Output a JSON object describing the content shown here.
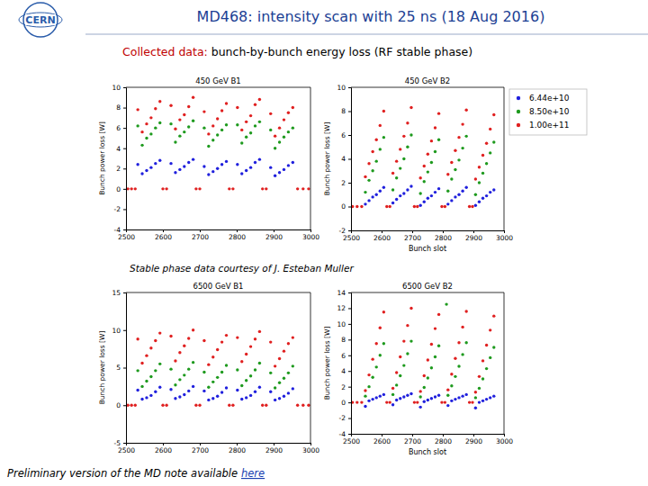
{
  "header": {
    "logo": "CERN",
    "title": "MD468: intensity scan with 25 ns (18 Aug 2016)"
  },
  "subtitle": {
    "lead": "Collected data:",
    "text": "bunch-by-bunch energy loss (RF stable phase)"
  },
  "credit": "Stable phase data courtesy of J. Esteban Muller",
  "footer": {
    "text": "Preliminary version of the MD note available",
    "link": "here"
  },
  "chart_data": [
    {
      "type": "scatter",
      "title": "450 GeV B1",
      "y_label": "Bunch power loss [W]",
      "xlim": [
        2500,
        3000
      ],
      "ylim": [
        -4,
        10
      ],
      "xticks": [
        2500,
        2600,
        2700,
        2800,
        2900,
        3000
      ],
      "yticks": [
        -4,
        -2,
        0,
        2,
        4,
        6,
        8,
        10
      ],
      "grid": false,
      "series": [
        {
          "color": "#2020dd",
          "marker": "circle",
          "x": [
            2532,
            2544,
            2556,
            2568,
            2580,
            2592,
            2622,
            2634,
            2646,
            2658,
            2670,
            2682,
            2712,
            2724,
            2736,
            2748,
            2760,
            2772,
            2802,
            2814,
            2826,
            2838,
            2850,
            2862,
            2892,
            2904,
            2916,
            2928,
            2940,
            2952
          ],
          "values": [
            2.4,
            1.5,
            1.8,
            2.1,
            2.5,
            2.8,
            2.5,
            1.6,
            1.9,
            2.2,
            2.6,
            2.9,
            2.2,
            1.4,
            1.7,
            2.0,
            2.4,
            2.7,
            2.4,
            1.5,
            1.8,
            2.1,
            2.6,
            2.9,
            2.1,
            1.3,
            1.6,
            1.9,
            2.3,
            2.6
          ]
        },
        {
          "color": "#1e9a1e",
          "marker": "circle",
          "x": [
            2532,
            2544,
            2556,
            2568,
            2580,
            2592,
            2622,
            2634,
            2646,
            2658,
            2670,
            2682,
            2712,
            2724,
            2736,
            2748,
            2760,
            2772,
            2802,
            2814,
            2826,
            2838,
            2850,
            2862,
            2892,
            2904,
            2916,
            2928,
            2940,
            2952
          ],
          "values": [
            6.2,
            4.3,
            5.0,
            5.4,
            6.0,
            6.5,
            6.4,
            4.6,
            5.2,
            5.6,
            6.1,
            6.7,
            6.0,
            4.2,
            4.8,
            5.3,
            5.8,
            6.3,
            6.3,
            4.5,
            5.1,
            5.5,
            6.2,
            6.6,
            5.8,
            4.0,
            4.6,
            5.1,
            5.6,
            6.0
          ]
        },
        {
          "color": "#e02020",
          "marker": "circle",
          "x": [
            2505,
            2515,
            2525,
            2532,
            2544,
            2556,
            2568,
            2580,
            2592,
            2600,
            2610,
            2622,
            2634,
            2646,
            2658,
            2670,
            2682,
            2690,
            2700,
            2712,
            2724,
            2736,
            2748,
            2760,
            2772,
            2780,
            2790,
            2802,
            2814,
            2826,
            2838,
            2850,
            2862,
            2870,
            2880,
            2892,
            2904,
            2916,
            2928,
            2940,
            2952,
            2965,
            2980,
            2995
          ],
          "values": [
            0,
            0,
            0,
            7.8,
            5.6,
            6.4,
            7.0,
            7.9,
            8.6,
            0,
            0,
            8.2,
            5.9,
            6.8,
            7.3,
            8.1,
            9.0,
            0,
            0,
            7.6,
            5.4,
            6.2,
            6.9,
            7.7,
            8.4,
            0,
            0,
            8.0,
            5.8,
            6.6,
            7.2,
            8.3,
            8.8,
            0,
            0,
            7.4,
            5.2,
            6.0,
            6.8,
            7.5,
            8.0,
            0,
            0,
            0
          ]
        }
      ]
    },
    {
      "type": "scatter",
      "title": "450 GeV B2",
      "x_label": "Bunch slot",
      "y_label": "Bunch power loss [W]",
      "xlim": [
        2500,
        3000
      ],
      "ylim": [
        -2,
        10
      ],
      "xticks": [
        2500,
        2600,
        2700,
        2800,
        2900,
        3000
      ],
      "yticks": [
        -2,
        0,
        2,
        4,
        6,
        8,
        10
      ],
      "grid": false,
      "legend": "right",
      "series": [
        {
          "name": "6.44e+10",
          "color": "#2020dd",
          "marker": "circle",
          "x": [
            2547,
            2559,
            2571,
            2583,
            2595,
            2607,
            2637,
            2649,
            2661,
            2673,
            2685,
            2697,
            2727,
            2739,
            2751,
            2763,
            2775,
            2787,
            2817,
            2829,
            2841,
            2853,
            2865,
            2877,
            2907,
            2919,
            2931,
            2943,
            2955,
            2967
          ],
          "values": [
            0.2,
            0.5,
            0.8,
            1.0,
            1.3,
            1.6,
            0.3,
            0.6,
            0.9,
            1.1,
            1.4,
            1.7,
            0.1,
            0.4,
            0.7,
            0.9,
            1.2,
            1.5,
            0.2,
            0.5,
            0.8,
            1.0,
            1.3,
            1.6,
            0.1,
            0.4,
            0.7,
            0.9,
            1.2,
            1.4
          ]
        },
        {
          "name": "8.50e+10",
          "color": "#1e9a1e",
          "marker": "circle",
          "x": [
            2547,
            2559,
            2571,
            2583,
            2595,
            2607,
            2637,
            2649,
            2661,
            2673,
            2685,
            2697,
            2727,
            2739,
            2751,
            2763,
            2775,
            2787,
            2817,
            2829,
            2841,
            2853,
            2865,
            2877,
            2907,
            2919,
            2931,
            2943,
            2955,
            2967
          ],
          "values": [
            1.2,
            2.2,
            3.0,
            3.8,
            4.8,
            5.8,
            1.4,
            2.4,
            3.2,
            4.0,
            5.0,
            6.0,
            1.1,
            2.1,
            2.9,
            3.7,
            4.6,
            5.6,
            1.3,
            2.3,
            3.1,
            3.9,
            4.9,
            5.9,
            1.0,
            2.0,
            2.8,
            3.6,
            4.5,
            5.4
          ]
        },
        {
          "name": "1.00e+11",
          "color": "#e02020",
          "marker": "circle",
          "x": [
            2505,
            2520,
            2535,
            2547,
            2559,
            2571,
            2583,
            2595,
            2607,
            2617,
            2627,
            2637,
            2649,
            2661,
            2673,
            2685,
            2697,
            2707,
            2717,
            2727,
            2739,
            2751,
            2763,
            2775,
            2787,
            2797,
            2807,
            2817,
            2829,
            2841,
            2853,
            2865,
            2877,
            2887,
            2897,
            2907,
            2919,
            2931,
            2943,
            2955,
            2967
          ],
          "values": [
            0,
            0,
            0,
            2.5,
            3.6,
            4.6,
            5.6,
            6.8,
            8.0,
            0,
            0,
            2.8,
            3.8,
            4.8,
            5.9,
            7.0,
            8.3,
            0,
            0,
            2.4,
            3.4,
            4.4,
            5.5,
            6.6,
            7.8,
            0,
            0,
            2.7,
            3.7,
            4.7,
            5.8,
            6.9,
            8.1,
            0,
            0,
            2.3,
            3.3,
            4.3,
            5.3,
            6.5,
            7.7
          ]
        }
      ]
    },
    {
      "type": "scatter",
      "title": "6500 GeV B1",
      "y_label": "Bunch power loss [W]",
      "xlim": [
        2500,
        3000
      ],
      "ylim": [
        -5,
        15
      ],
      "xticks": [
        2500,
        2600,
        2700,
        2800,
        2900,
        3000
      ],
      "yticks": [
        -5,
        0,
        5,
        10,
        15
      ],
      "grid": false,
      "series": [
        {
          "color": "#2020dd",
          "marker": "circle",
          "x": [
            2532,
            2544,
            2556,
            2568,
            2580,
            2592,
            2622,
            2634,
            2646,
            2658,
            2670,
            2682,
            2712,
            2724,
            2736,
            2748,
            2760,
            2772,
            2802,
            2814,
            2826,
            2838,
            2850,
            2862,
            2892,
            2904,
            2916,
            2928,
            2940,
            2952
          ],
          "values": [
            2.0,
            0.8,
            1.0,
            1.3,
            1.8,
            2.4,
            2.1,
            0.9,
            1.1,
            1.4,
            1.9,
            2.5,
            1.9,
            0.7,
            0.9,
            1.2,
            1.7,
            2.3,
            2.0,
            0.8,
            1.0,
            1.3,
            1.8,
            2.4,
            1.8,
            0.7,
            0.9,
            1.2,
            1.6,
            2.2
          ]
        },
        {
          "color": "#1e9a1e",
          "marker": "circle",
          "x": [
            2532,
            2544,
            2556,
            2568,
            2580,
            2592,
            2622,
            2634,
            2646,
            2658,
            2670,
            2682,
            2712,
            2724,
            2736,
            2748,
            2760,
            2772,
            2802,
            2814,
            2826,
            2838,
            2850,
            2862,
            2892,
            2904,
            2916,
            2928,
            2940,
            2952
          ],
          "values": [
            4.6,
            2.5,
            3.2,
            3.8,
            4.6,
            5.5,
            4.8,
            2.7,
            3.4,
            4.0,
            4.8,
            5.7,
            4.4,
            2.4,
            3.1,
            3.7,
            4.4,
            5.3,
            4.7,
            2.6,
            3.3,
            3.9,
            4.7,
            5.6,
            4.3,
            2.3,
            3.0,
            3.6,
            4.3,
            5.2
          ]
        },
        {
          "color": "#e02020",
          "marker": "circle",
          "x": [
            2505,
            2515,
            2525,
            2532,
            2544,
            2556,
            2568,
            2580,
            2592,
            2600,
            2610,
            2622,
            2634,
            2646,
            2658,
            2670,
            2682,
            2690,
            2700,
            2712,
            2724,
            2736,
            2748,
            2760,
            2772,
            2780,
            2790,
            2802,
            2814,
            2826,
            2838,
            2850,
            2862,
            2870,
            2880,
            2892,
            2904,
            2916,
            2928,
            2940,
            2952,
            2965,
            2980,
            2995
          ],
          "values": [
            0,
            0,
            0,
            8.8,
            5.6,
            6.6,
            7.6,
            8.6,
            9.6,
            0,
            0,
            9.2,
            5.9,
            7.0,
            7.9,
            8.9,
            10.0,
            0,
            0,
            8.6,
            5.4,
            6.4,
            7.4,
            8.4,
            9.3,
            0,
            0,
            9.0,
            5.8,
            6.8,
            7.8,
            8.8,
            9.8,
            0,
            0,
            8.4,
            5.2,
            6.2,
            7.2,
            8.2,
            9.0,
            0,
            0,
            0
          ]
        }
      ]
    },
    {
      "type": "scatter",
      "title": "6500 GeV B2",
      "x_label": "Bunch slot",
      "y_label": "Bunch power loss [W]",
      "xlim": [
        2500,
        3000
      ],
      "ylim": [
        -4,
        14
      ],
      "xticks": [
        2500,
        2600,
        2700,
        2800,
        2900,
        3000
      ],
      "yticks": [
        -4,
        -2,
        0,
        2,
        4,
        6,
        8,
        10,
        12,
        14
      ],
      "grid": false,
      "series": [
        {
          "color": "#2020dd",
          "marker": "circle",
          "x": [
            2547,
            2559,
            2571,
            2583,
            2595,
            2607,
            2637,
            2649,
            2661,
            2673,
            2685,
            2697,
            2727,
            2739,
            2751,
            2763,
            2775,
            2787,
            2817,
            2829,
            2841,
            2853,
            2865,
            2877,
            2907,
            2919,
            2931,
            2943,
            2955,
            2967
          ],
          "values": [
            -0.5,
            0.2,
            0.4,
            0.6,
            0.8,
            1.0,
            -0.3,
            0.3,
            0.5,
            0.7,
            0.9,
            1.1,
            -0.6,
            0.1,
            0.3,
            0.5,
            0.7,
            0.9,
            -0.4,
            0.2,
            0.4,
            0.6,
            0.8,
            1.0,
            -0.7,
            0.0,
            0.2,
            0.4,
            0.6,
            0.8
          ]
        },
        {
          "color": "#1e9a1e",
          "marker": "circle",
          "x": [
            2547,
            2559,
            2571,
            2583,
            2595,
            2607,
            2637,
            2649,
            2661,
            2673,
            2685,
            2697,
            2727,
            2739,
            2751,
            2763,
            2775,
            2787,
            2817,
            2829,
            2841,
            2853,
            2865,
            2877,
            2907,
            2919,
            2931,
            2943,
            2955,
            2967,
            2812
          ],
          "values": [
            0.8,
            2.0,
            3.2,
            4.5,
            6.0,
            7.5,
            1.0,
            2.2,
            3.4,
            4.7,
            6.2,
            7.8,
            0.7,
            1.9,
            3.1,
            4.4,
            5.8,
            7.2,
            0.9,
            2.1,
            3.3,
            4.6,
            6.1,
            7.6,
            0.6,
            1.8,
            3.0,
            4.3,
            5.7,
            7.0,
            12.5
          ]
        },
        {
          "color": "#e02020",
          "marker": "circle",
          "x": [
            2505,
            2520,
            2535,
            2547,
            2559,
            2571,
            2583,
            2595,
            2607,
            2617,
            2627,
            2637,
            2649,
            2661,
            2673,
            2685,
            2697,
            2707,
            2717,
            2727,
            2739,
            2751,
            2763,
            2775,
            2787,
            2797,
            2807,
            2817,
            2829,
            2841,
            2853,
            2865,
            2877,
            2887,
            2897,
            2907,
            2919,
            2931,
            2943,
            2955,
            2967
          ],
          "values": [
            0,
            0,
            0,
            1.5,
            3.5,
            5.5,
            7.5,
            9.5,
            11.5,
            0,
            0,
            1.8,
            3.8,
            5.8,
            7.8,
            9.8,
            12.0,
            0,
            0,
            1.4,
            3.4,
            5.4,
            7.4,
            9.4,
            11.2,
            0,
            0,
            1.6,
            3.6,
            5.6,
            7.6,
            9.6,
            11.6,
            0,
            0,
            1.3,
            3.3,
            5.3,
            7.3,
            9.2,
            11.0
          ]
        }
      ]
    }
  ]
}
